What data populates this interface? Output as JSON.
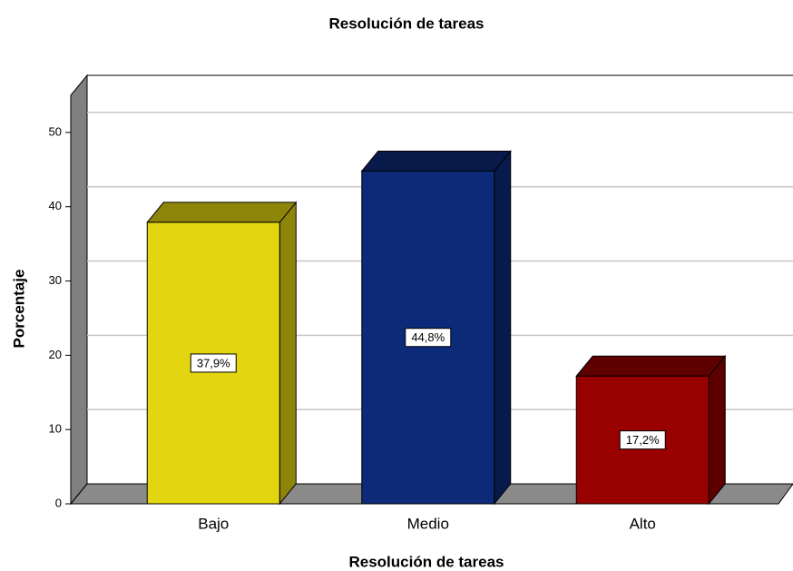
{
  "chart_data": {
    "type": "bar3d",
    "title": "Resolución de tareas",
    "x_label": "Resolución de tareas",
    "y_label": "Porcentaje",
    "categories": [
      "Bajo",
      "Medio",
      "Alto"
    ],
    "values": [
      37.9,
      44.8,
      17.2
    ],
    "value_labels": [
      "37,9%",
      "44,8%",
      "17,2%"
    ],
    "colors": [
      "#e3d610",
      "#0c2a78",
      "#990000"
    ],
    "ylim": [
      0,
      55
    ],
    "yticks": [
      0,
      10,
      20,
      30,
      40,
      50
    ],
    "grid": true
  }
}
